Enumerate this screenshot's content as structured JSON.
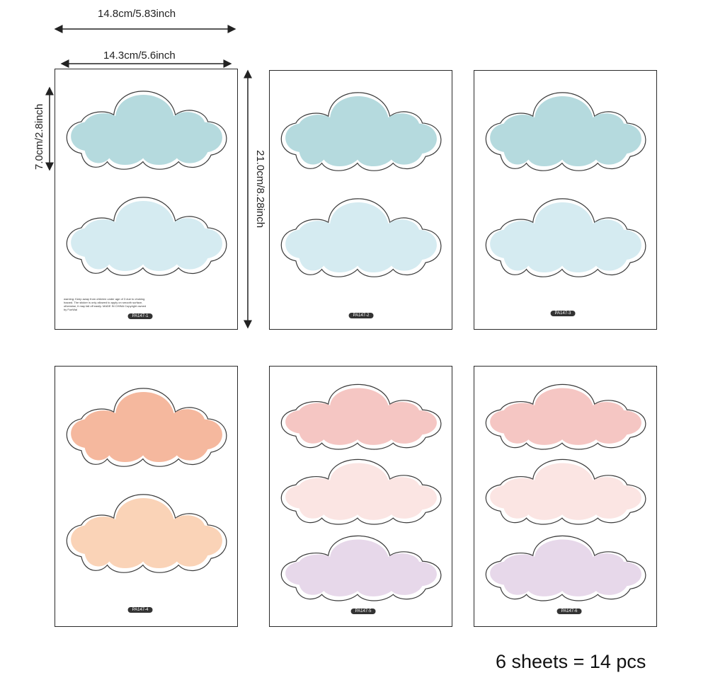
{
  "dimensions": {
    "outer_width": "14.8cm/5.83inch",
    "inner_width": "14.3cm/5.6inch",
    "cloud_height": "7.0cm/2.8inch",
    "sheet_height": "21.0cm/8.28inch"
  },
  "sheets": [
    {
      "code": "PA147-1",
      "clouds": [
        "#b5dade",
        "#d5ebf1"
      ],
      "warning": "warning: Keep away from children under age of 3 due to choking hazard. The sticker is only allowed to apply on smooth surface, otherwise, it may fall off easily. MADE IN CHINA Copyright owned by FunWal"
    },
    {
      "code": "PA147-2",
      "clouds": [
        "#b5dade",
        "#d5ebf1"
      ]
    },
    {
      "code": "PA147-3",
      "clouds": [
        "#b5dade",
        "#d5ebf1"
      ]
    },
    {
      "code": "PA147-4",
      "clouds": [
        "#f5b89e",
        "#fad3b7"
      ]
    },
    {
      "code": "PA147-5",
      "clouds": [
        "#f5c6c3",
        "#fbe5e3",
        "#e7d8ea"
      ]
    },
    {
      "code": "PA147-6",
      "clouds": [
        "#f5c6c3",
        "#fbe5e3",
        "#e7d8ea"
      ]
    }
  ],
  "summary": "6 sheets = 14 pcs"
}
